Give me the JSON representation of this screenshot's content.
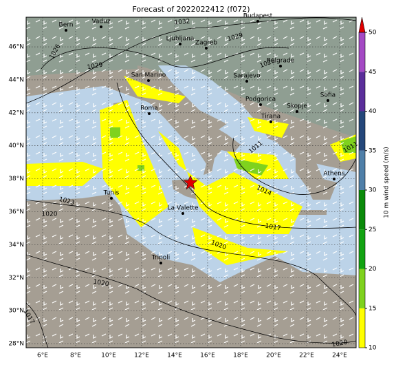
{
  "title": "Forecast of 2022022412 (f072)",
  "lon_ticks": [
    {
      "value": 6,
      "label": "6°E"
    },
    {
      "value": 8,
      "label": "8°E"
    },
    {
      "value": 10,
      "label": "10°E"
    },
    {
      "value": 12,
      "label": "12°E"
    },
    {
      "value": 14,
      "label": "14°E"
    },
    {
      "value": 16,
      "label": "16°E"
    },
    {
      "value": 18,
      "label": "18°E"
    },
    {
      "value": 20,
      "label": "20°E"
    },
    {
      "value": 22,
      "label": "22°E"
    },
    {
      "value": 24,
      "label": "24°E"
    }
  ],
  "lat_ticks": [
    {
      "value": 46,
      "label": "46°N"
    },
    {
      "value": 44,
      "label": "44°N"
    },
    {
      "value": 42,
      "label": "42°N"
    },
    {
      "value": 40,
      "label": "40°N"
    },
    {
      "value": 38,
      "label": "38°N"
    },
    {
      "value": 36,
      "label": "36°N"
    },
    {
      "value": 34,
      "label": "34°N"
    },
    {
      "value": 32,
      "label": "32°N"
    },
    {
      "value": 30,
      "label": "30°N"
    },
    {
      "value": 28,
      "label": "28°N"
    }
  ],
  "lon_lim": [
    5,
    25
  ],
  "lat_lim": [
    27.75,
    47.8
  ],
  "cities": [
    "Bern",
    "Vaduz",
    "Budapest",
    "Ljubljana",
    "Zagreb",
    "San Marino",
    "Sarajevo",
    "Belgrade",
    "Sofia",
    "Podgorica",
    "Skopje",
    "Tirana",
    "Roma",
    "Athens",
    "Tunis",
    "La Valette",
    "Tripoli"
  ],
  "isobar_labels": [
    "1032",
    "1029",
    "1026",
    "1029",
    "1026",
    "1011",
    "1011",
    "1014",
    "1017",
    "1020",
    "1023",
    "1020",
    "1020",
    "1017",
    "1020"
  ],
  "colorbar": {
    "label": "10 m wind speed (m/s)",
    "lim": [
      10,
      50
    ],
    "ticks": [
      10,
      15,
      20,
      25,
      30,
      35,
      40,
      45,
      50
    ],
    "colors": [
      "#ffff00",
      "#7fd21e",
      "#12a312",
      "#0a8a0a",
      "#4f7fa8",
      "#24477a",
      "#5a2e9a",
      "#a449c4"
    ],
    "extend_color": "#e00000"
  }
}
